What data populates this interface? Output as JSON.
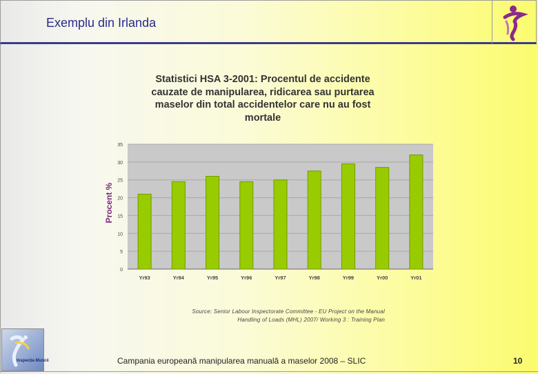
{
  "slide": {
    "title": "Exemplu din Irlanda",
    "footer": "Campania europeană manipularea manuală a maselor 2008 – SLIC",
    "page_number": "10",
    "source_line1": "Source: Senior Labour Inspectorate Committee - EU Project on the Manual",
    "source_line2": "Handling of Loads (MHL) 2007/ Working 3 : Training Plan",
    "bottom_logo_text": "Inspecția Muncii"
  },
  "colors": {
    "bar_fill": "#99cc00",
    "bar_stroke": "#6f9a00",
    "plot_bg": "#c9c9c9",
    "title_color": "#2a2a8a",
    "ylabel_color": "#7a2a7a"
  },
  "chart_data": {
    "type": "bar",
    "title": "Statistici HSA 3-2001: Procentul de accidente cauzate de manipularea, ridicarea sau purtarea maselor din total accidentelor care nu au fost mortale",
    "title_lines": [
      "Statistici HSA 3-2001: Procentul de accidente",
      "cauzate de manipularea, ridicarea sau purtarea",
      "maselor din total accidentelor care nu au fost",
      "mortale"
    ],
    "xlabel": "",
    "ylabel": "Procent %",
    "categories": [
      "Yr93",
      "Yr94",
      "Yr95",
      "Yr96",
      "Yr97",
      "Yr98",
      "Yr99",
      "Yr00",
      "Yr01"
    ],
    "values": [
      21,
      24.5,
      26,
      24.5,
      25,
      27.5,
      29.5,
      28.5,
      32
    ],
    "ylim": [
      0,
      35
    ],
    "yticks": [
      0,
      5,
      10,
      15,
      20,
      25,
      30,
      35
    ],
    "grid": true
  }
}
